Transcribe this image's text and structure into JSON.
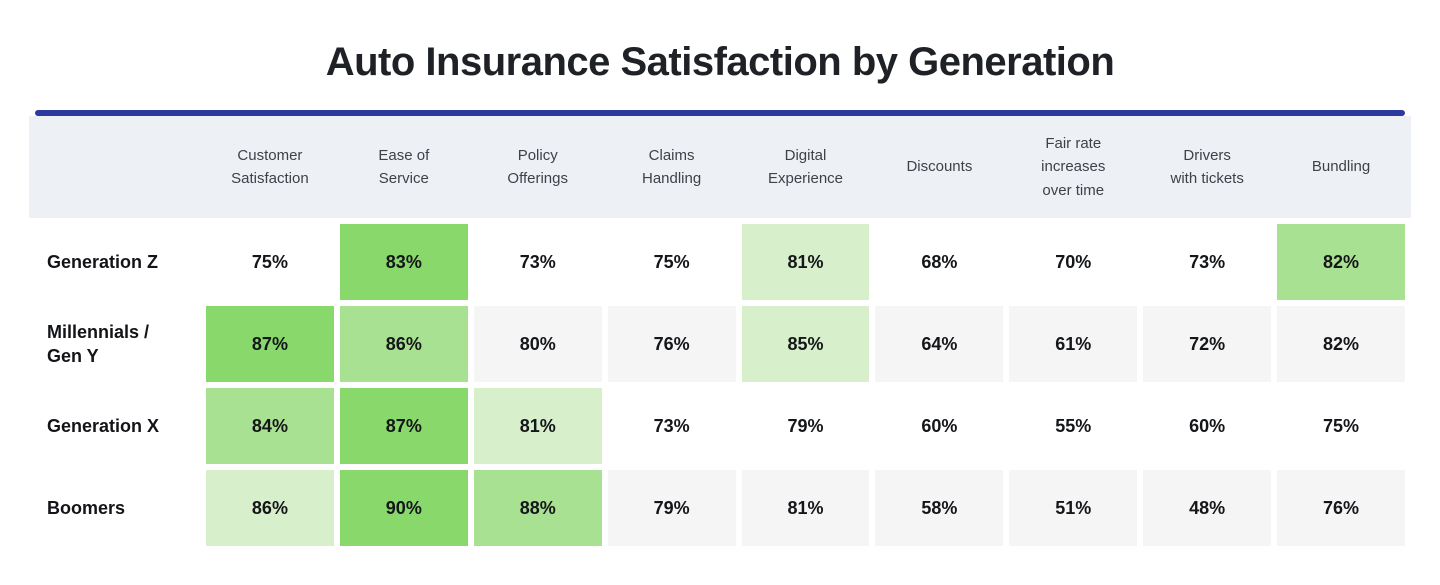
{
  "title": "Auto Insurance Satisfaction by Generation",
  "colors": {
    "accent_rule": "#2c3a9e",
    "header_band_bg": "#edf1f6",
    "row_stripe_bg": "#f5f5f6",
    "row_plain_bg": "#ffffff",
    "highlight_rank1": "#89d86c",
    "highlight_rank2": "#a9e192",
    "highlight_rank3": "#d7efca",
    "title_text": "#1e2126",
    "header_text": "#3e4247",
    "cell_text": "#141619"
  },
  "chart_data": {
    "type": "heatmap",
    "title": "Auto Insurance Satisfaction by Generation",
    "unit": "%",
    "columns": [
      "Customer\nSatisfaction",
      "Ease of\nService",
      "Policy\nOfferings",
      "Claims\nHandling",
      "Digital\nExperience",
      "Discounts",
      "Fair rate\nincreases\nover time",
      "Drivers\nwith tickets",
      "Bundling"
    ],
    "rows": [
      {
        "label": "Generation Z",
        "values": [
          75,
          83,
          73,
          75,
          81,
          68,
          70,
          73,
          82
        ]
      },
      {
        "label": "Millennials /\nGen Y",
        "values": [
          87,
          86,
          80,
          76,
          85,
          64,
          61,
          72,
          82
        ]
      },
      {
        "label": "Generation X",
        "values": [
          84,
          87,
          81,
          73,
          79,
          60,
          55,
          60,
          75
        ]
      },
      {
        "label": "Boomers",
        "values": [
          86,
          90,
          88,
          79,
          81,
          58,
          51,
          48,
          76
        ]
      }
    ],
    "value_format": "percent",
    "striped_row_indexes": [
      1,
      3
    ],
    "highlights": [
      {
        "row": "Generation Z",
        "rank1": "Ease of Service (83%)",
        "rank2": "Bundling (82%)",
        "rank3": "Digital Experience (81%)"
      },
      {
        "row": "Millennials / Gen Y",
        "rank1": "Customer Satisfaction (87%)",
        "rank2": "Ease of Service (86%)",
        "rank3": "Digital Experience (85%)"
      },
      {
        "row": "Generation X",
        "rank1": "Ease of Service (87%)",
        "rank2": "Customer Satisfaction (84%)",
        "rank3": "Policy Offerings (81%)"
      },
      {
        "row": "Boomers",
        "rank1": "Ease of Service (90%)",
        "rank2": "Policy Offerings (88%)",
        "rank3": "Customer Satisfaction (86%)"
      }
    ],
    "legend_note": "top 3 values in each row shaded green, darkest = highest"
  }
}
